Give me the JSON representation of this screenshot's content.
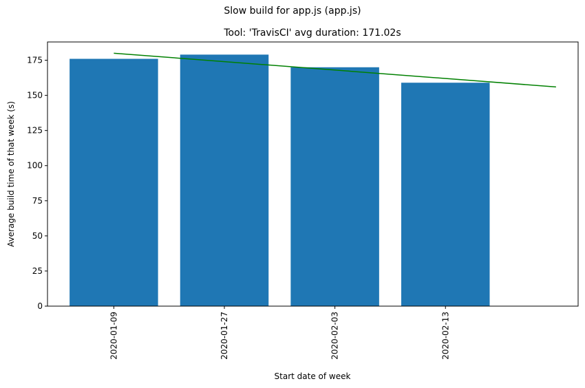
{
  "chart_data": {
    "type": "bar",
    "suptitle": "Slow build for app.js (app.js)",
    "title": "Tool: 'TravisCI' avg duration: 171.02s",
    "xlabel": "Start date of week",
    "ylabel": "Average build time of that week (s)",
    "categories": [
      "2020-01-09",
      "2020-01-27",
      "2020-02-03",
      "2020-02-13"
    ],
    "values": [
      176,
      179,
      170,
      159
    ],
    "bar_color": "#1f77b4",
    "trend_line": {
      "color": "#008000",
      "x": [
        0,
        4
      ],
      "y": [
        180,
        156
      ]
    },
    "xlim": [
      -0.6,
      4.2
    ],
    "ylim": [
      0,
      188
    ],
    "yticks": [
      0,
      25,
      50,
      75,
      100,
      125,
      150,
      175
    ],
    "grid": false
  }
}
